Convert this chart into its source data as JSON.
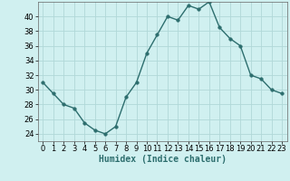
{
  "x": [
    0,
    1,
    2,
    3,
    4,
    5,
    6,
    7,
    8,
    9,
    10,
    11,
    12,
    13,
    14,
    15,
    16,
    17,
    18,
    19,
    20,
    21,
    22,
    23
  ],
  "y": [
    31,
    29.5,
    28,
    27.5,
    25.5,
    24.5,
    24,
    25,
    29,
    31,
    35,
    37.5,
    40,
    39.5,
    41.5,
    41,
    42,
    38.5,
    37,
    36,
    32,
    31.5,
    30,
    29.5
  ],
  "line_color": "#2d6e6e",
  "marker": "o",
  "marker_size": 2.5,
  "bg_color": "#d0f0f0",
  "grid_color": "#b0d8d8",
  "xlabel": "Humidex (Indice chaleur)",
  "ylabel": "",
  "xlim": [
    -0.5,
    23.5
  ],
  "ylim": [
    23,
    42
  ],
  "yticks": [
    24,
    26,
    28,
    30,
    32,
    34,
    36,
    38,
    40
  ],
  "xtick_labels": [
    "0",
    "1",
    "2",
    "3",
    "4",
    "5",
    "6",
    "7",
    "8",
    "9",
    "10",
    "11",
    "12",
    "13",
    "14",
    "15",
    "16",
    "17",
    "18",
    "19",
    "20",
    "21",
    "22",
    "23"
  ],
  "xlabel_fontsize": 7,
  "tick_fontsize": 6,
  "line_width": 1.0
}
